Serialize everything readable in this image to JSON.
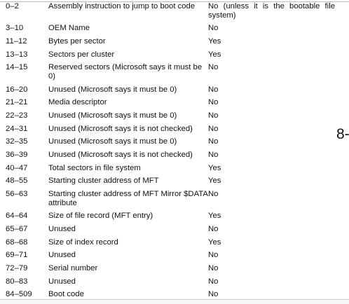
{
  "side_label": "8-",
  "table": {
    "rows": [
      {
        "offset": "0–2",
        "description": "Assembly instruction to jump to boot code",
        "required": "No (unless it is the bootable file system)"
      },
      {
        "offset": "3–10",
        "description": "OEM Name",
        "required": "No"
      },
      {
        "offset": "11–12",
        "description": "Bytes per sector",
        "required": "Yes"
      },
      {
        "offset": "13–13",
        "description": "Sectors per cluster",
        "required": "Yes"
      },
      {
        "offset": "14–15",
        "description": "Reserved sectors (Microsoft says it must be 0)",
        "required": "No"
      },
      {
        "offset": "16–20",
        "description": "Unused (Microsoft says it must be 0)",
        "required": "No"
      },
      {
        "offset": "21–21",
        "description": "Media descriptor",
        "required": "No"
      },
      {
        "offset": "22–23",
        "description": "Unused (Microsoft says it must be 0)",
        "required": "No"
      },
      {
        "offset": "24–31",
        "description": "Unused (Microsoft says it is not checked)",
        "required": "No"
      },
      {
        "offset": "32–35",
        "description": "Unused (Microsoft says it must be 0)",
        "required": "No"
      },
      {
        "offset": "36–39",
        "description": "Unused (Microsoft says it is not checked)",
        "required": "No"
      },
      {
        "offset": "40–47",
        "description": "Total sectors in file system",
        "required": "Yes"
      },
      {
        "offset": "48–55",
        "description": "Starting cluster address of MFT",
        "required": "Yes"
      },
      {
        "offset": "56–63",
        "description": "Starting cluster address of MFT Mirror $DATA attribute",
        "required": "No"
      },
      {
        "offset": "64–64",
        "description": "Size of file record (MFT entry)",
        "required": "Yes"
      },
      {
        "offset": "65–67",
        "description": "Unused",
        "required": "No"
      },
      {
        "offset": "68–68",
        "description": "Size of index record",
        "required": "Yes"
      },
      {
        "offset": "69–71",
        "description": "Unused",
        "required": "No"
      },
      {
        "offset": "72–79",
        "description": "Serial number",
        "required": "No"
      },
      {
        "offset": "80–83",
        "description": "Unused",
        "required": "No"
      },
      {
        "offset": "84–509",
        "description": "Boot code",
        "required": "No"
      }
    ]
  }
}
